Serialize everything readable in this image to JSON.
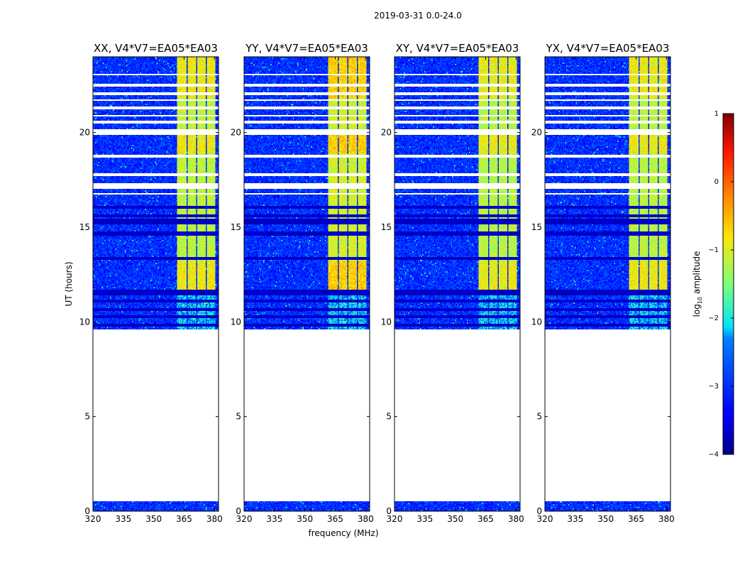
{
  "chart_data": {
    "type": "heatmap",
    "title": "2019-03-31 0.0-24.0",
    "xlabel": "frequency (MHz)",
    "ylabel": "UT (hours)",
    "xlim": [
      320,
      382
    ],
    "ylim": [
      0,
      24
    ],
    "xticks": [
      "320",
      "335",
      "350",
      "365",
      "380"
    ],
    "yticks": [
      "0",
      "5",
      "10",
      "15",
      "20"
    ],
    "xtick_values": [
      320,
      335,
      350,
      365,
      380
    ],
    "ytick_values": [
      0,
      5,
      10,
      15,
      20
    ],
    "panels": [
      {
        "title": "XX, V4*V7=EA05*EA03",
        "rfi_level": 0.62
      },
      {
        "title": "YY, V4*V7=EA05*EA03",
        "rfi_level": 0.82
      },
      {
        "title": "XY, V4*V7=EA05*EA03",
        "rfi_level": 0.58
      },
      {
        "title": "YX, V4*V7=EA05*EA03",
        "rfi_level": 0.6
      }
    ],
    "data_ranges_hours": [
      [
        0.0,
        0.5
      ],
      [
        9.6,
        24.0
      ]
    ],
    "background_log_amplitude": -3.0,
    "rfi_band_mhz": [
      [
        361.5,
        366.2
      ],
      [
        366.8,
        370.8
      ],
      [
        371.6,
        375.6
      ],
      [
        376.3,
        380.4
      ]
    ],
    "flagged_hours": [
      [
        23.0,
        23.12
      ],
      [
        22.45,
        22.55
      ],
      [
        21.95,
        22.1
      ],
      [
        21.7,
        21.78
      ],
      [
        21.2,
        21.35
      ],
      [
        20.85,
        20.95
      ],
      [
        20.5,
        20.62
      ],
      [
        19.9,
        20.15
      ],
      [
        18.7,
        18.8
      ],
      [
        17.7,
        17.82
      ],
      [
        17.05,
        17.32
      ],
      [
        16.75,
        16.82
      ]
    ],
    "dark_hours": [
      [
        15.95,
        16.1
      ],
      [
        15.55,
        15.7
      ],
      [
        15.15,
        15.45
      ],
      [
        14.55,
        14.75
      ],
      [
        13.25,
        13.4
      ],
      [
        11.4,
        11.7
      ],
      [
        11.0,
        11.15
      ],
      [
        10.55,
        10.7
      ],
      [
        10.2,
        10.35
      ],
      [
        9.75,
        9.9
      ]
    ],
    "colorbar": {
      "label": "log$_{10}$ amplitude",
      "label_main": "log",
      "label_sub": "10",
      "label_rest": " amplitude",
      "range": [
        -4,
        1
      ],
      "ticks": [
        "1",
        "0",
        "−1",
        "−2",
        "−3",
        "−4"
      ],
      "tick_values": [
        1,
        0,
        -1,
        -2,
        -3,
        -4
      ]
    }
  }
}
